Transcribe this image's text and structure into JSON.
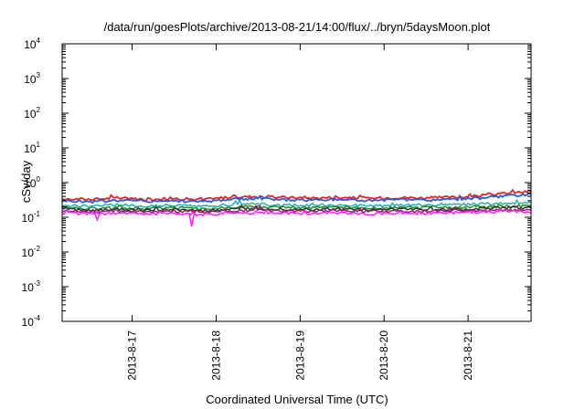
{
  "chart_data": {
    "type": "line",
    "title": "/data/run/goesPlots/archive/2013-08-21/14:00/flux/../bryn/5daysMoon.plot",
    "xlabel": "Coordinated Universal Time (UTC)",
    "ylabel": "cSv/day",
    "yscale": "log",
    "ylim": [
      0.0001,
      10000
    ],
    "xlim": [
      "2013-08-16T04:00",
      "2013-08-21T18:00"
    ],
    "grid": false,
    "legend": "none",
    "y_ticks": [
      {
        "base": "10",
        "exp": "4",
        "value": 10000
      },
      {
        "base": "10",
        "exp": "3",
        "value": 1000
      },
      {
        "base": "10",
        "exp": "2",
        "value": 100
      },
      {
        "base": "10",
        "exp": "1",
        "value": 10
      },
      {
        "base": "10",
        "exp": "0",
        "value": 1
      },
      {
        "base": "10",
        "exp": "-1",
        "value": 0.1
      },
      {
        "base": "10",
        "exp": "-2",
        "value": 0.01
      },
      {
        "base": "10",
        "exp": "-3",
        "value": 0.001
      },
      {
        "base": "10",
        "exp": "-4",
        "value": 0.0001
      }
    ],
    "x_ticks": [
      {
        "label": "2013-8-17",
        "date": "2013-08-17T00:00"
      },
      {
        "label": "2013-8-18",
        "date": "2013-08-18T00:00"
      },
      {
        "label": "2013-8-19",
        "date": "2013-08-19T00:00"
      },
      {
        "label": "2013-8-20",
        "date": "2013-08-20T00:00"
      },
      {
        "label": "2013-8-21",
        "date": "2013-08-21T00:00"
      }
    ],
    "x": [
      "2013-08-16T04:00",
      "2013-08-16T12:00",
      "2013-08-16T20:00",
      "2013-08-17T04:00",
      "2013-08-17T12:00",
      "2013-08-17T20:00",
      "2013-08-18T04:00",
      "2013-08-18T12:00",
      "2013-08-18T20:00",
      "2013-08-19T04:00",
      "2013-08-19T12:00",
      "2013-08-19T20:00",
      "2013-08-20T04:00",
      "2013-08-20T12:00",
      "2013-08-20T20:00",
      "2013-08-21T04:00",
      "2013-08-21T12:00",
      "2013-08-21T18:00"
    ],
    "series": [
      {
        "color": "#e8212a",
        "values": [
          0.34,
          0.33,
          0.36,
          0.33,
          0.35,
          0.32,
          0.38,
          0.4,
          0.37,
          0.36,
          0.38,
          0.35,
          0.37,
          0.36,
          0.38,
          0.42,
          0.5,
          0.56
        ]
      },
      {
        "color": "#1f5fe6",
        "values": [
          0.3,
          0.28,
          0.31,
          0.29,
          0.3,
          0.28,
          0.33,
          0.35,
          0.32,
          0.31,
          0.33,
          0.3,
          0.32,
          0.31,
          0.33,
          0.36,
          0.41,
          0.45
        ]
      },
      {
        "color": "#1fb4a9",
        "values": [
          0.22,
          0.21,
          0.23,
          0.21,
          0.22,
          0.2,
          0.23,
          0.24,
          0.22,
          0.22,
          0.23,
          0.21,
          0.22,
          0.22,
          0.23,
          0.24,
          0.25,
          0.26
        ]
      },
      {
        "color": "#2a8a2a",
        "values": [
          0.19,
          0.18,
          0.19,
          0.18,
          0.19,
          0.17,
          0.19,
          0.2,
          0.19,
          0.19,
          0.19,
          0.18,
          0.19,
          0.19,
          0.19,
          0.2,
          0.21,
          0.21
        ]
      },
      {
        "color": "#333333",
        "values": [
          0.17,
          0.16,
          0.17,
          0.16,
          0.17,
          0.15,
          0.17,
          0.18,
          0.17,
          0.17,
          0.17,
          0.16,
          0.17,
          0.17,
          0.17,
          0.18,
          0.19,
          0.19
        ]
      },
      {
        "color": "#9a1f6e",
        "values": [
          0.155,
          0.145,
          0.15,
          0.145,
          0.15,
          0.14,
          0.155,
          0.16,
          0.15,
          0.15,
          0.155,
          0.145,
          0.15,
          0.15,
          0.155,
          0.16,
          0.165,
          0.165
        ]
      },
      {
        "color": "#ff1aff",
        "values": [
          0.135,
          0.125,
          0.13,
          0.125,
          0.13,
          0.12,
          0.13,
          0.14,
          0.13,
          0.13,
          0.135,
          0.125,
          0.13,
          0.13,
          0.135,
          0.14,
          0.145,
          0.145
        ]
      }
    ],
    "annotations": [
      {
        "series": 6,
        "x": "2013-08-16T14:00",
        "y": 0.085
      },
      {
        "series": 6,
        "x": "2013-08-17T17:00",
        "y": 0.055
      }
    ]
  }
}
